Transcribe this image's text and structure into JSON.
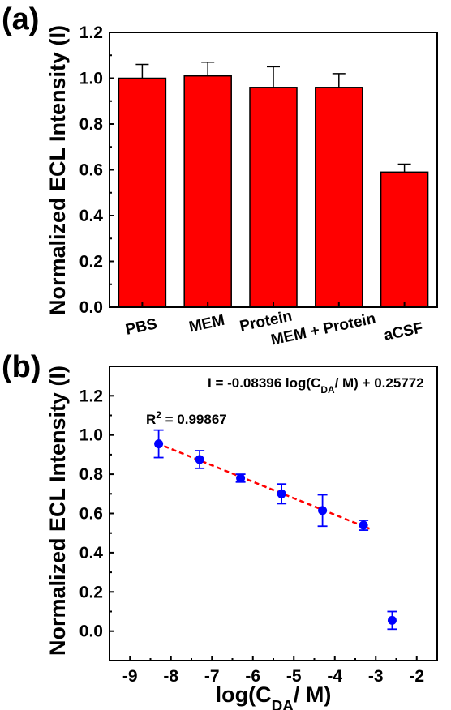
{
  "chart_data": [
    {
      "panel": "(a)",
      "type": "bar",
      "ylabel": "Normalized ECL Intensity (I)",
      "categories": [
        "PBS",
        "MEM",
        "Protein",
        "MEM + Protein",
        "aCSF"
      ],
      "values": [
        1.0,
        1.01,
        0.96,
        0.96,
        0.59
      ],
      "errors": [
        0.06,
        0.06,
        0.09,
        0.06,
        0.035
      ],
      "ylim": [
        0,
        1.2
      ],
      "yticks": [
        "0.0",
        "0.2",
        "0.4",
        "0.6",
        "0.8",
        "1.0",
        "1.2"
      ],
      "bar_color": "#ff0000"
    },
    {
      "panel": "(b)",
      "type": "scatter",
      "ylabel": "Normalized ECL Intensity (I)",
      "xlabel": "log(C_DA/ M)",
      "xlim": [
        -9.5,
        -1.5
      ],
      "ylim": [
        -0.15,
        1.35
      ],
      "xticks": [
        "-9",
        "-8",
        "-7",
        "-6",
        "-5",
        "-4",
        "-3",
        "-2"
      ],
      "yticks": [
        "0.0",
        "0.2",
        "0.4",
        "0.6",
        "0.8",
        "1.0",
        "1.2"
      ],
      "points": [
        {
          "x": -8.3,
          "y": 0.955,
          "err": 0.07
        },
        {
          "x": -7.3,
          "y": 0.875,
          "err": 0.045
        },
        {
          "x": -6.3,
          "y": 0.78,
          "err": 0.02
        },
        {
          "x": -5.3,
          "y": 0.7,
          "err": 0.05
        },
        {
          "x": -4.3,
          "y": 0.615,
          "err": 0.08
        },
        {
          "x": -3.3,
          "y": 0.54,
          "err": 0.025
        },
        {
          "x": -2.6,
          "y": 0.055,
          "err": 0.045
        }
      ],
      "fit": {
        "slope": -0.08396,
        "intercept": 0.25772,
        "x_range": [
          -8.3,
          -3.3
        ],
        "color": "#ff0000"
      },
      "equation": "I = -0.08396 log(C_DA/ M) + 0.25772",
      "r_squared": "R² = 0.99867",
      "point_color": "#0000ff"
    }
  ]
}
